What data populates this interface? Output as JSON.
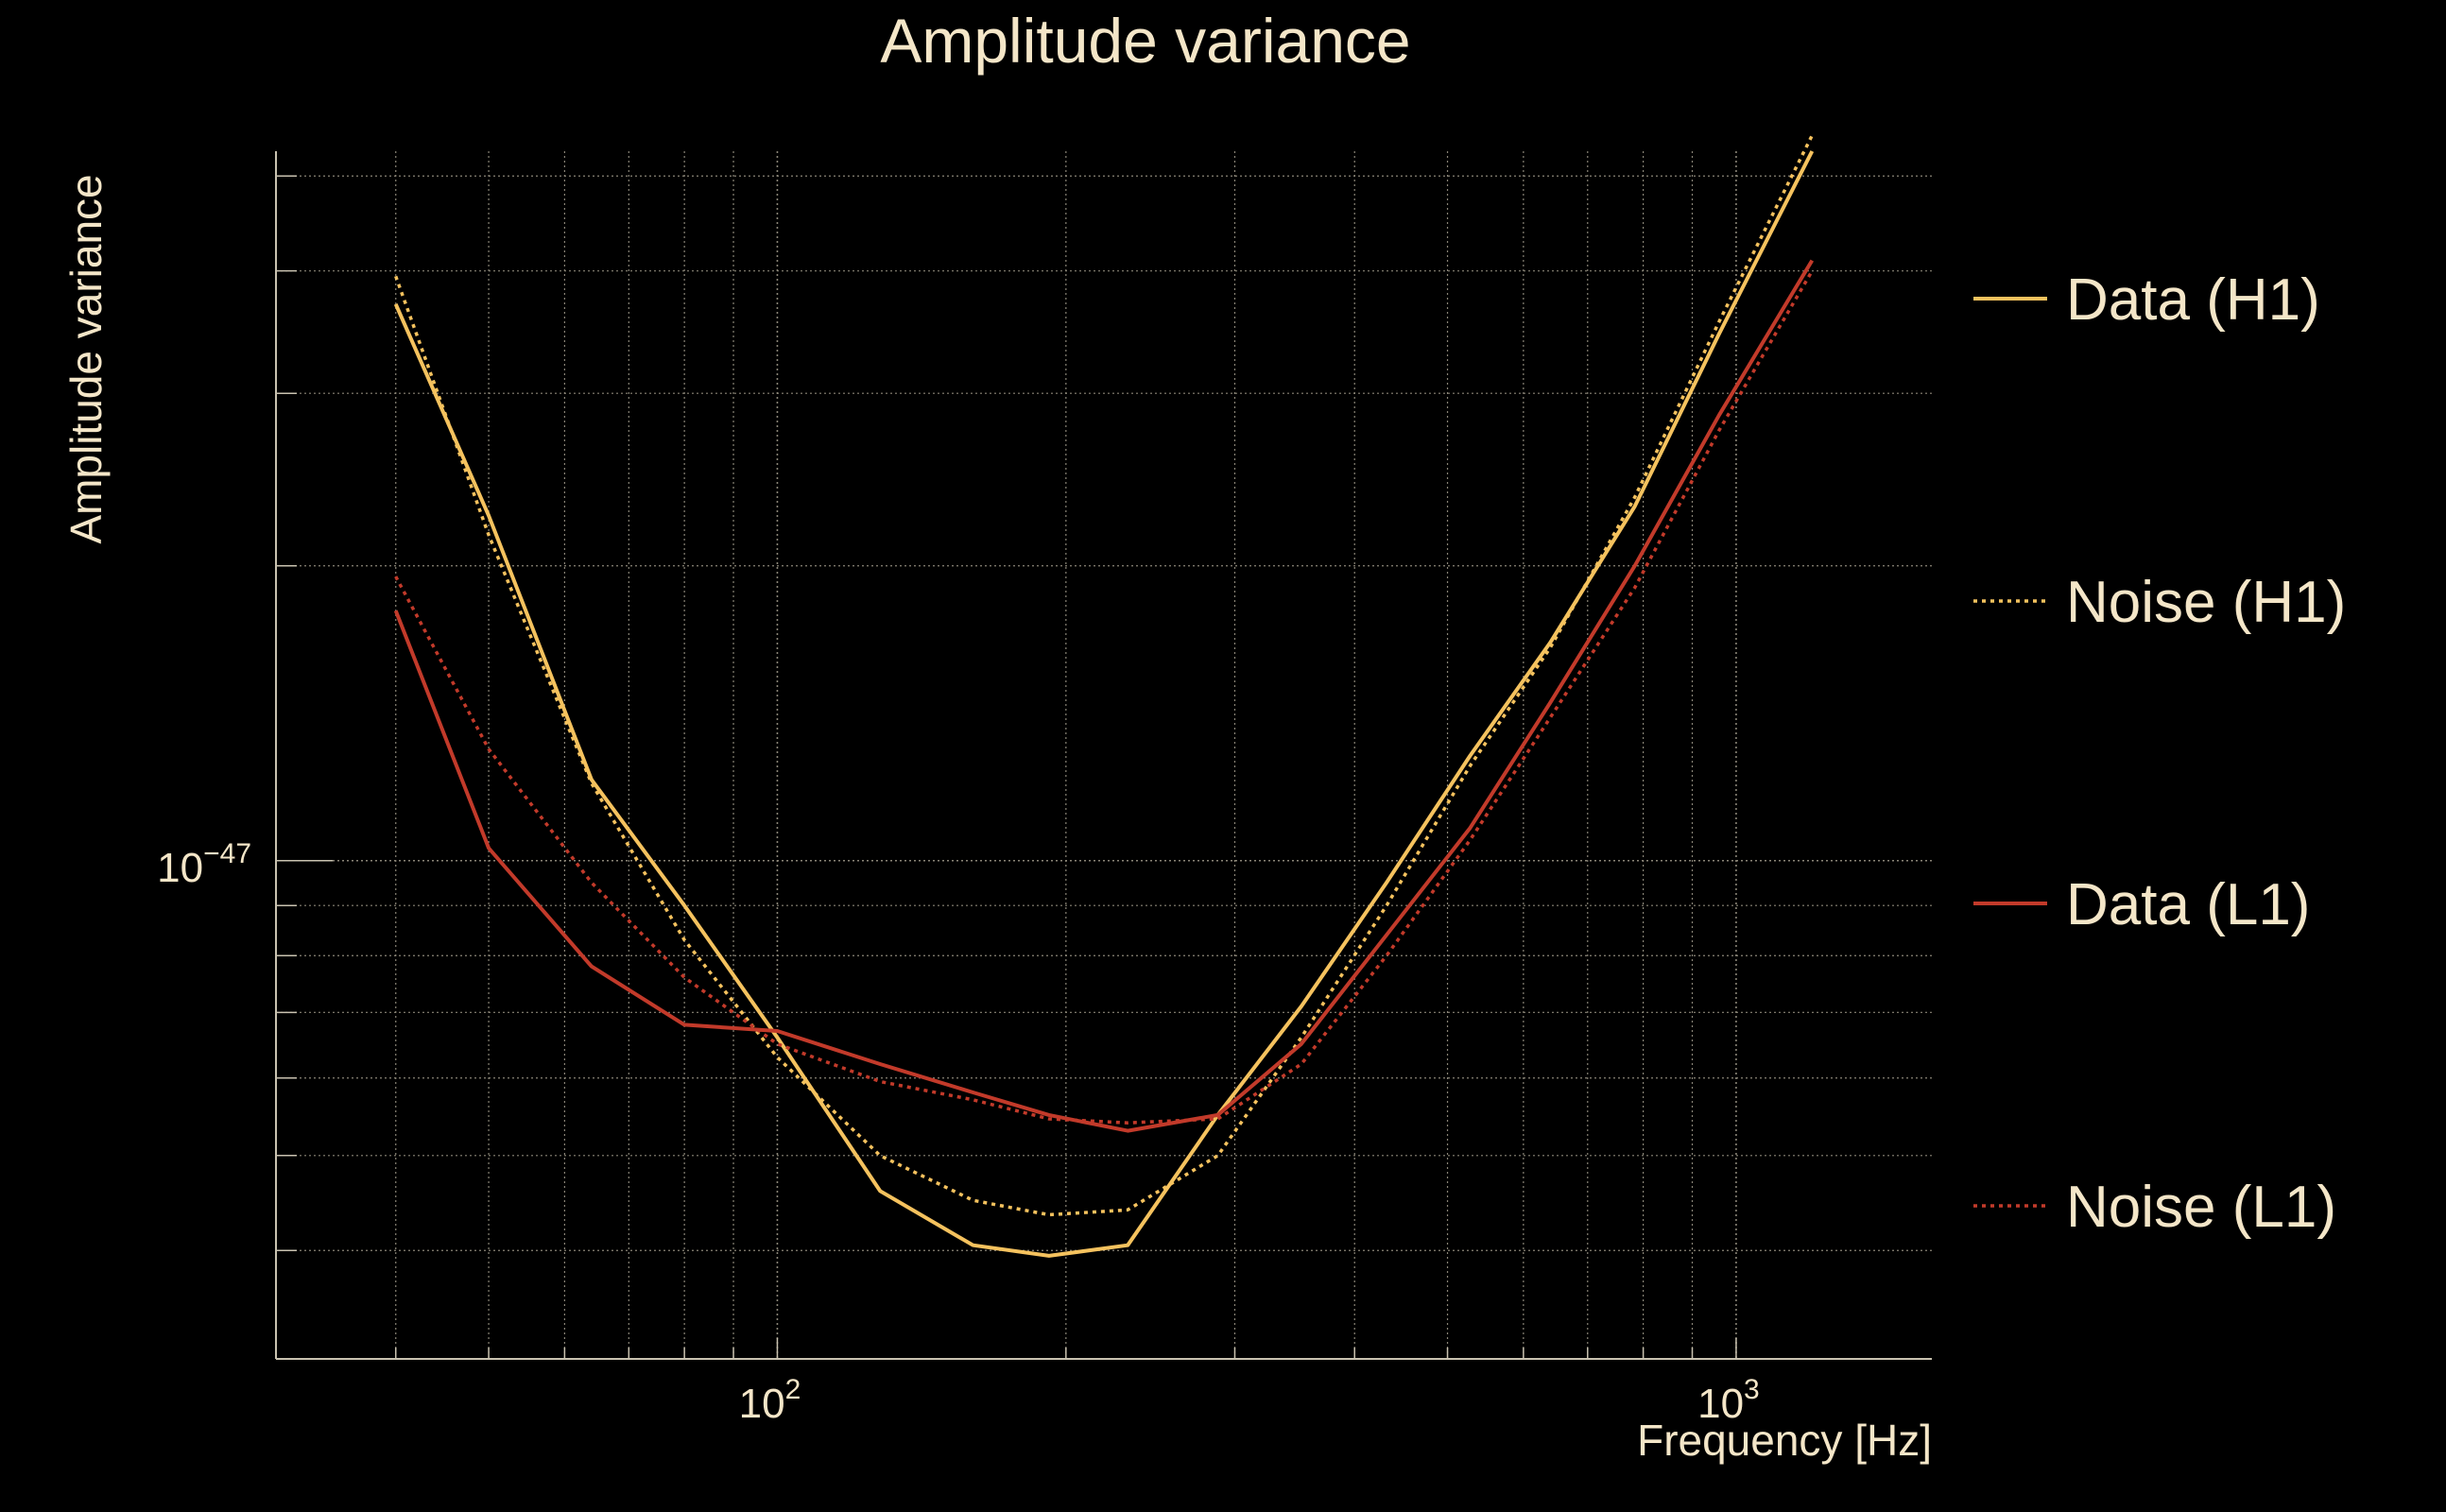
{
  "chart_data": {
    "type": "line",
    "title": "Amplitude variance",
    "xlabel": "Frequency [Hz]",
    "ylabel": "Amplitude variance",
    "xscale": "log",
    "yscale": "log",
    "xlim": [
      30,
      1600
    ],
    "ylim": [
      3.1e-48,
      5.3e-47
    ],
    "x_ticks": [
      {
        "value": 100,
        "base": "10",
        "exp": "2"
      },
      {
        "value": 1000,
        "base": "10",
        "exp": "3"
      }
    ],
    "y_ticks": [
      {
        "value": 1e-47,
        "base": "10",
        "exp": "−47"
      }
    ],
    "grid": true,
    "legend_position": "right",
    "x": [
      40,
      50,
      64,
      80,
      100,
      128,
      160,
      192,
      232,
      288,
      352,
      432,
      528,
      640,
      784,
      960,
      1200
    ],
    "series": [
      {
        "name": "Data (H1)",
        "color": "#f5c25e",
        "style": "solid",
        "values": [
          3.7e-47,
          2.25e-47,
          1.21e-47,
          9e-48,
          6.6e-48,
          4.6e-48,
          4.05e-48,
          3.95e-48,
          4.05e-48,
          5.5e-48,
          7.1e-48,
          9.5e-48,
          1.28e-47,
          1.67e-47,
          2.3e-47,
          3.45e-47,
          5.3e-47
        ]
      },
      {
        "name": "Noise (H1)",
        "color": "#f5c25e",
        "style": "dotted",
        "values": [
          3.95e-47,
          2.15e-47,
          1.2e-47,
          8.3e-48,
          6.3e-48,
          5e-48,
          4.5e-48,
          4.35e-48,
          4.4e-48,
          5e-48,
          6.6e-48,
          9e-48,
          1.25e-47,
          1.65e-47,
          2.35e-47,
          3.55e-47,
          5.5e-47
        ]
      },
      {
        "name": "Data (L1)",
        "color": "#c23a2a",
        "style": "solid",
        "values": [
          1.8e-47,
          1.03e-47,
          7.8e-48,
          6.8e-48,
          6.7e-48,
          6.2e-48,
          5.8e-48,
          5.5e-48,
          5.3e-48,
          5.5e-48,
          6.5e-48,
          8.4e-48,
          1.08e-47,
          1.45e-47,
          2e-47,
          2.85e-47,
          4.1e-47
        ]
      },
      {
        "name": "Noise (L1)",
        "color": "#c23a2a",
        "style": "dotted",
        "values": [
          1.95e-47,
          1.3e-47,
          9.5e-48,
          7.6e-48,
          6.5e-48,
          5.95e-48,
          5.7e-48,
          5.45e-48,
          5.4e-48,
          5.45e-48,
          6.2e-48,
          8e-48,
          1.05e-47,
          1.4e-47,
          1.9e-47,
          2.75e-47,
          4e-47
        ]
      }
    ]
  }
}
